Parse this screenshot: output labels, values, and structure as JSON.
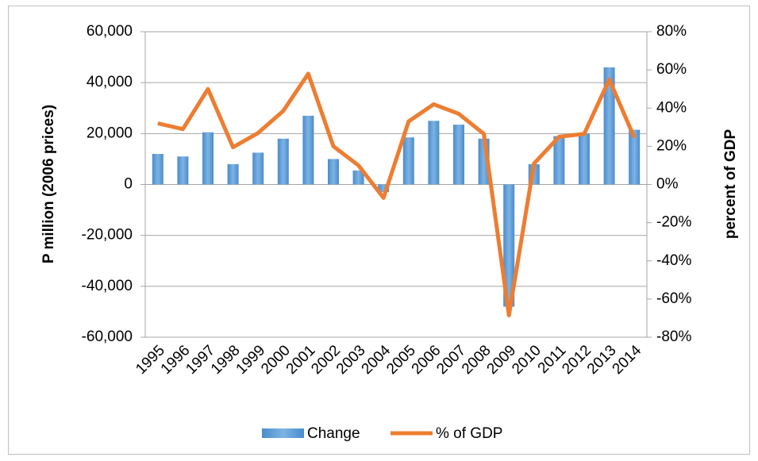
{
  "chart_data": {
    "type": "bar+line",
    "categories": [
      "1995",
      "1996",
      "1997",
      "1998",
      "1999",
      "2000",
      "2001",
      "2002",
      "2003",
      "2004",
      "2005",
      "2006",
      "2007",
      "2008",
      "2009",
      "2010",
      "2011",
      "2012",
      "2013",
      "2014"
    ],
    "ylabel": "P million (2006 prices)",
    "y2label": "percent of GDP",
    "ylim": [
      -60000,
      60000
    ],
    "yticks": [
      {
        "value": -60000,
        "label": "-60,000"
      },
      {
        "value": -40000,
        "label": "-40,000"
      },
      {
        "value": -20000,
        "label": "-20,000"
      },
      0,
      {
        "value": 20000,
        "label": "20,000"
      },
      {
        "value": 40000,
        "label": "40,000"
      },
      {
        "value": 60000,
        "label": "60,000"
      }
    ],
    "y2lim": [
      -80,
      80
    ],
    "y2ticks": [
      {
        "value": -80,
        "label": "-80%"
      },
      {
        "value": -60,
        "label": "-60%"
      },
      {
        "value": -40,
        "label": "-40%"
      },
      {
        "value": -20,
        "label": "-20%"
      },
      {
        "value": 0,
        "label": "0%"
      },
      {
        "value": 20,
        "label": "20%"
      },
      {
        "value": 40,
        "label": "40%"
      },
      {
        "value": 60,
        "label": "60%"
      },
      {
        "value": 80,
        "label": "80%"
      }
    ],
    "grid": true,
    "legend": "bottom",
    "series": [
      {
        "name": "Change",
        "type": "bar",
        "color": "#5b9bd5",
        "values": [
          12000,
          11000,
          20500,
          8000,
          12500,
          18000,
          27000,
          10000,
          5500,
          -3000,
          18500,
          25000,
          23500,
          18000,
          -48000,
          8000,
          19000,
          20000,
          46000,
          21500
        ]
      },
      {
        "name": "% of GDP",
        "type": "line",
        "axis": "y2",
        "color": "#ed7d31",
        "values": [
          32,
          29,
          50,
          19.5,
          27,
          38.5,
          58,
          20,
          10,
          -7,
          33,
          42,
          37,
          26.5,
          -68.5,
          11,
          25,
          26.5,
          55,
          24.5
        ]
      }
    ]
  }
}
